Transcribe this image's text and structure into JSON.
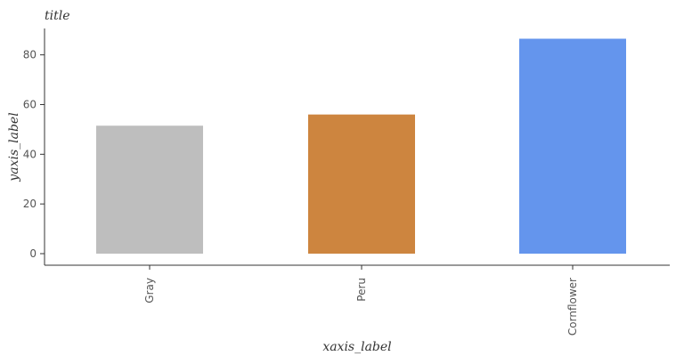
{
  "chart_data": {
    "type": "bar",
    "title": "title",
    "xlabel": "xaxis_label",
    "ylabel": "yaxis_label",
    "categories": [
      "Gray",
      "Peru",
      "Cornflower"
    ],
    "values": [
      51.5,
      56,
      86.5
    ],
    "colors": [
      "#bebebe",
      "#cd853f",
      "#6495ed"
    ],
    "ylim": [
      0,
      90
    ],
    "yticks": [
      0,
      20,
      40,
      60,
      80
    ],
    "ytick_labels": [
      "0",
      "20",
      "40",
      "60",
      "80"
    ],
    "grid": false,
    "legend": "none"
  }
}
